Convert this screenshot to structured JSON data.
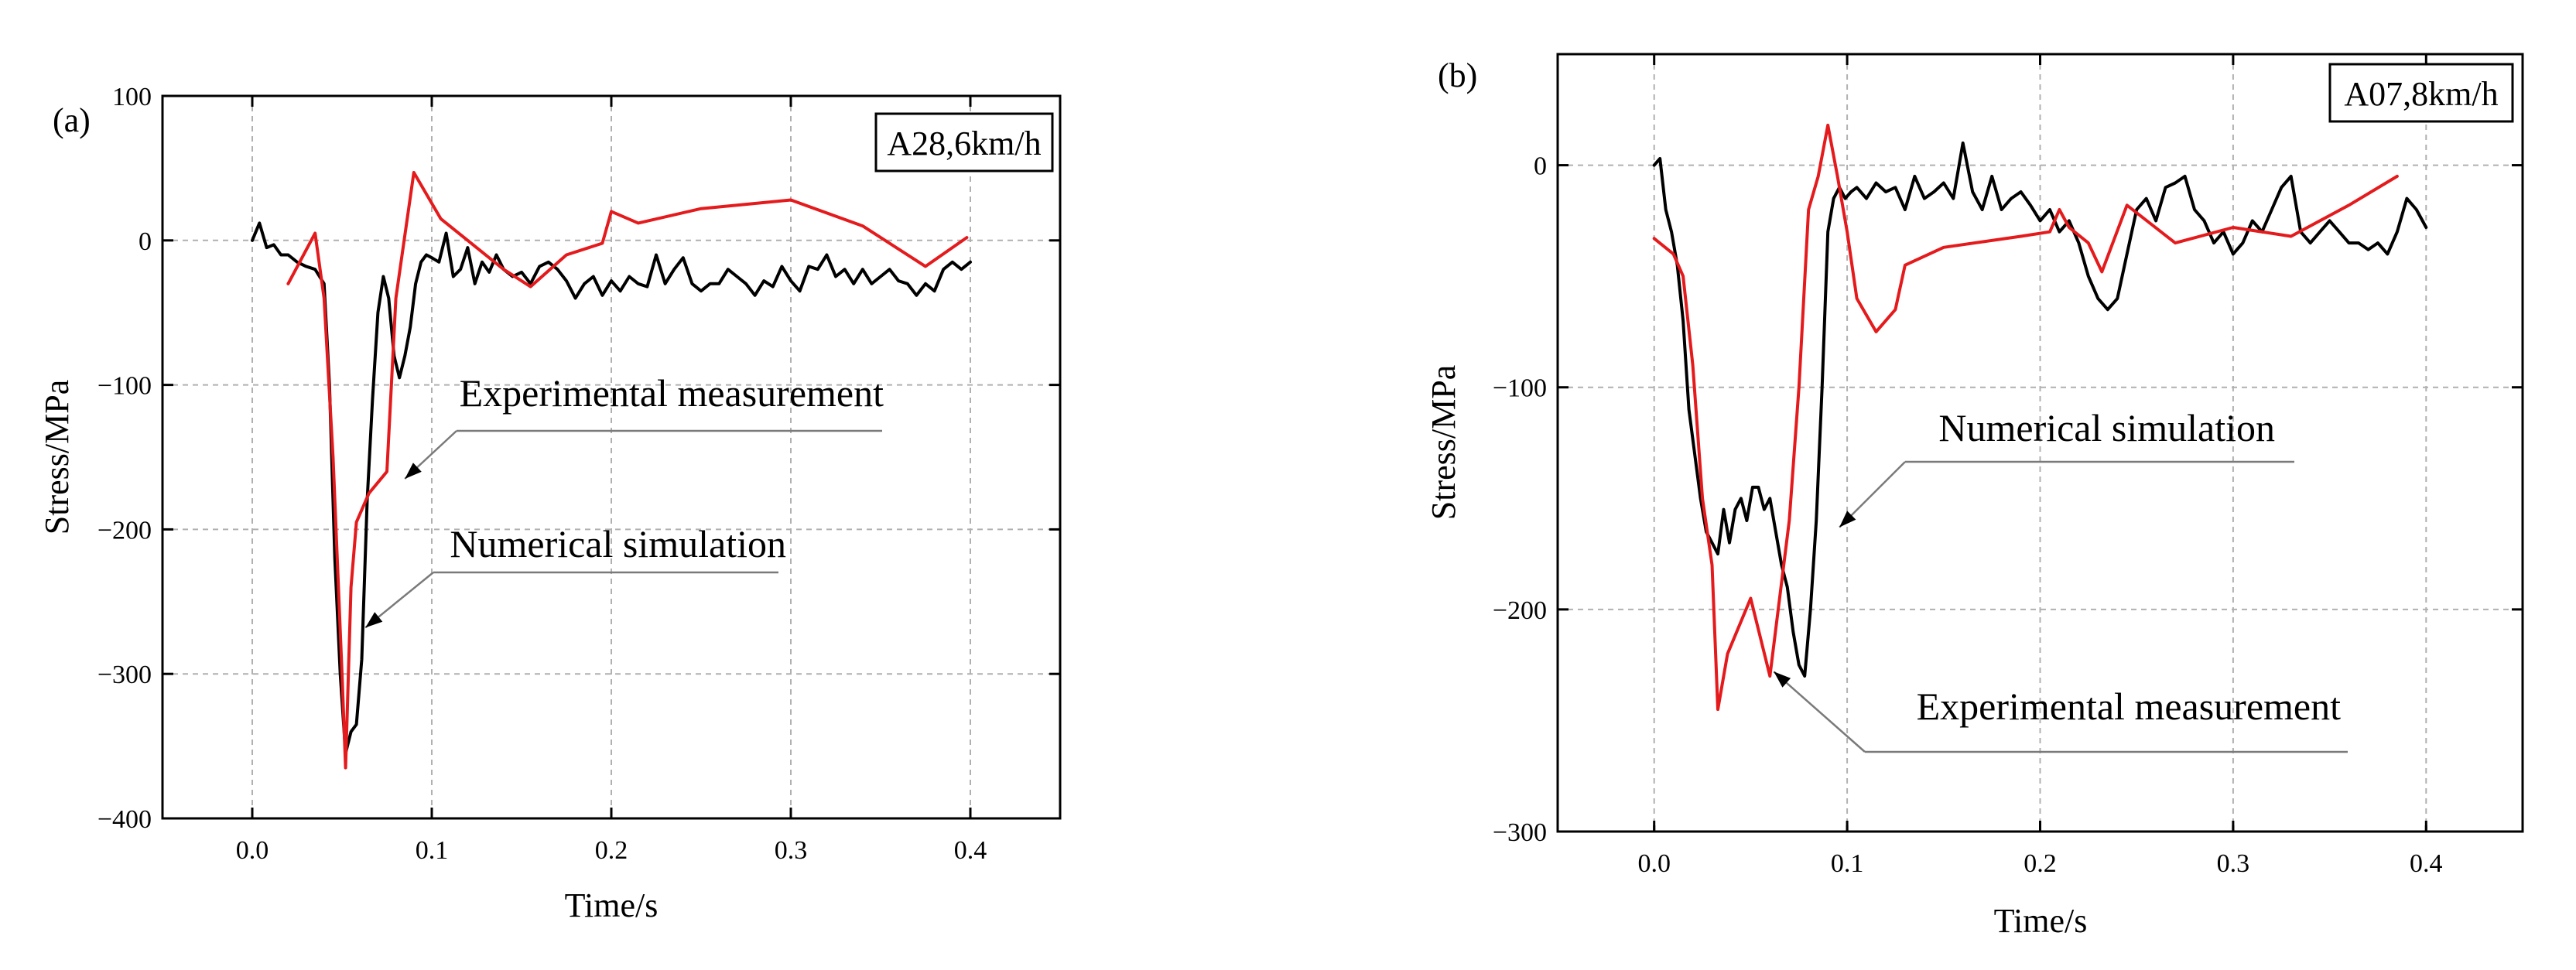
{
  "chart_data": [
    {
      "type": "line",
      "panel": "(a)",
      "title": "A28,6km/h",
      "xlabel": "Time/s",
      "ylabel": "Stress/MPa",
      "xlim": [
        -0.05,
        0.45
      ],
      "ylim": [
        -400,
        100
      ],
      "x_ticks": [
        0.0,
        0.1,
        0.2,
        0.3,
        0.4
      ],
      "x_tick_labels": [
        "0.0",
        "0.1",
        "0.2",
        "0.3",
        "0.4"
      ],
      "y_ticks": [
        100,
        0,
        -100,
        -200,
        -300,
        -400
      ],
      "y_tick_labels": [
        "100",
        "0",
        "−100",
        "−200",
        "−300",
        "−400"
      ],
      "grid": true,
      "series": [
        {
          "name": "Numerical simulation",
          "color": "#000000",
          "x": [
            0.0,
            0.004,
            0.008,
            0.012,
            0.016,
            0.02,
            0.025,
            0.03,
            0.035,
            0.04,
            0.043,
            0.046,
            0.049,
            0.052,
            0.055,
            0.058,
            0.061,
            0.064,
            0.067,
            0.07,
            0.073,
            0.076,
            0.079,
            0.082,
            0.085,
            0.088,
            0.091,
            0.094,
            0.097,
            0.1,
            0.104,
            0.108,
            0.112,
            0.116,
            0.12,
            0.124,
            0.128,
            0.132,
            0.136,
            0.14,
            0.145,
            0.15,
            0.155,
            0.16,
            0.165,
            0.17,
            0.175,
            0.18,
            0.185,
            0.19,
            0.195,
            0.2,
            0.205,
            0.21,
            0.215,
            0.22,
            0.225,
            0.23,
            0.235,
            0.24,
            0.245,
            0.25,
            0.255,
            0.26,
            0.265,
            0.27,
            0.275,
            0.28,
            0.285,
            0.29,
            0.295,
            0.3,
            0.305,
            0.31,
            0.315,
            0.32,
            0.325,
            0.33,
            0.335,
            0.34,
            0.345,
            0.35,
            0.355,
            0.36,
            0.365,
            0.37,
            0.375,
            0.38,
            0.385,
            0.39,
            0.395,
            0.4
          ],
          "y": [
            0,
            12,
            -5,
            -3,
            -10,
            -10,
            -15,
            -18,
            -20,
            -30,
            -100,
            -220,
            -300,
            -355,
            -340,
            -335,
            -290,
            -180,
            -110,
            -50,
            -25,
            -40,
            -80,
            -95,
            -80,
            -60,
            -30,
            -15,
            -10,
            -12,
            -15,
            5,
            -25,
            -20,
            -5,
            -30,
            -15,
            -22,
            -10,
            -20,
            -25,
            -22,
            -30,
            -18,
            -15,
            -20,
            -28,
            -40,
            -30,
            -25,
            -38,
            -28,
            -35,
            -25,
            -30,
            -32,
            -10,
            -30,
            -20,
            -12,
            -30,
            -35,
            -30,
            -30,
            -20,
            -25,
            -30,
            -38,
            -28,
            -32,
            -18,
            -28,
            -35,
            -18,
            -20,
            -10,
            -25,
            -20,
            -30,
            -20,
            -30,
            -25,
            -20,
            -28,
            -30,
            -38,
            -30,
            -35,
            -20,
            -15,
            -20,
            -15
          ]
        },
        {
          "name": "Experimental measurement",
          "color": "#e41a1c",
          "x": [
            0.02,
            0.035,
            0.04,
            0.045,
            0.05,
            0.052,
            0.055,
            0.058,
            0.065,
            0.075,
            0.08,
            0.09,
            0.105,
            0.12,
            0.14,
            0.155,
            0.175,
            0.195,
            0.2,
            0.215,
            0.25,
            0.3,
            0.34,
            0.375,
            0.398
          ],
          "y": [
            -30,
            5,
            -40,
            -150,
            -300,
            -365,
            -240,
            -195,
            -175,
            -160,
            -40,
            47,
            15,
            0,
            -20,
            -32,
            -10,
            -2,
            20,
            12,
            22,
            28,
            10,
            -18,
            2
          ]
        }
      ],
      "annotations": [
        {
          "text": "Experimental measurement",
          "target_x": 0.085,
          "target_y": -165
        },
        {
          "text": "Numerical simulation",
          "target_x": 0.063,
          "target_y": -268
        }
      ]
    },
    {
      "type": "line",
      "panel": "(b)",
      "title": "A07,8km/h",
      "xlabel": "Time/s",
      "ylabel": "Stress/MPa",
      "xlim": [
        -0.05,
        0.45
      ],
      "ylim": [
        -300,
        50
      ],
      "x_ticks": [
        0.0,
        0.1,
        0.2,
        0.3,
        0.4
      ],
      "x_tick_labels": [
        "0.0",
        "0.1",
        "0.2",
        "0.3",
        "0.4"
      ],
      "y_ticks": [
        0,
        -100,
        -200,
        -300
      ],
      "y_tick_labels": [
        "0",
        "−100",
        "−200",
        "−300"
      ],
      "grid": true,
      "series": [
        {
          "name": "Numerical simulation",
          "color": "#000000",
          "x": [
            0.0,
            0.003,
            0.006,
            0.009,
            0.012,
            0.015,
            0.018,
            0.021,
            0.024,
            0.027,
            0.03,
            0.033,
            0.036,
            0.039,
            0.042,
            0.045,
            0.048,
            0.051,
            0.054,
            0.057,
            0.06,
            0.063,
            0.066,
            0.069,
            0.072,
            0.075,
            0.078,
            0.081,
            0.084,
            0.087,
            0.09,
            0.093,
            0.096,
            0.099,
            0.102,
            0.105,
            0.11,
            0.115,
            0.12,
            0.125,
            0.13,
            0.135,
            0.14,
            0.145,
            0.15,
            0.155,
            0.16,
            0.165,
            0.17,
            0.175,
            0.18,
            0.185,
            0.19,
            0.195,
            0.2,
            0.205,
            0.21,
            0.215,
            0.22,
            0.225,
            0.23,
            0.235,
            0.24,
            0.245,
            0.25,
            0.255,
            0.26,
            0.265,
            0.27,
            0.275,
            0.28,
            0.285,
            0.29,
            0.295,
            0.3,
            0.305,
            0.31,
            0.315,
            0.32,
            0.325,
            0.33,
            0.335,
            0.34,
            0.345,
            0.35,
            0.355,
            0.36,
            0.365,
            0.37,
            0.375,
            0.38,
            0.385,
            0.39,
            0.395,
            0.4
          ],
          "y": [
            0,
            3,
            -20,
            -30,
            -45,
            -70,
            -110,
            -130,
            -150,
            -165,
            -170,
            -175,
            -155,
            -170,
            -155,
            -150,
            -160,
            -145,
            -145,
            -155,
            -150,
            -165,
            -180,
            -190,
            -210,
            -225,
            -230,
            -200,
            -160,
            -100,
            -30,
            -15,
            -10,
            -15,
            -12,
            -10,
            -15,
            -8,
            -12,
            -10,
            -20,
            -5,
            -15,
            -12,
            -8,
            -15,
            10,
            -12,
            -20,
            -5,
            -20,
            -15,
            -12,
            -18,
            -25,
            -20,
            -30,
            -25,
            -35,
            -50,
            -60,
            -65,
            -60,
            -40,
            -20,
            -15,
            -25,
            -10,
            -8,
            -5,
            -20,
            -25,
            -35,
            -30,
            -40,
            -35,
            -25,
            -30,
            -20,
            -10,
            -5,
            -30,
            -35,
            -30,
            -25,
            -30,
            -35,
            -35,
            -38,
            -35,
            -40,
            -30,
            -15,
            -20,
            -28
          ]
        },
        {
          "name": "Experimental measurement",
          "color": "#e41a1c",
          "x": [
            0.0,
            0.01,
            0.015,
            0.02,
            0.025,
            0.03,
            0.033,
            0.038,
            0.05,
            0.06,
            0.07,
            0.075,
            0.08,
            0.085,
            0.09,
            0.095,
            0.1,
            0.105,
            0.115,
            0.125,
            0.13,
            0.15,
            0.19,
            0.205,
            0.21,
            0.215,
            0.225,
            0.232,
            0.245,
            0.27,
            0.3,
            0.33,
            0.36,
            0.385
          ],
          "y": [
            -33,
            -40,
            -50,
            -90,
            -150,
            -180,
            -245,
            -220,
            -195,
            -230,
            -160,
            -100,
            -20,
            -5,
            18,
            -5,
            -30,
            -60,
            -75,
            -65,
            -45,
            -37,
            -32,
            -30,
            -20,
            -28,
            -35,
            -48,
            -18,
            -35,
            -28,
            -32,
            -18,
            -5
          ]
        }
      ],
      "annotations": [
        {
          "text": "Numerical simulation",
          "target_x": 0.096,
          "target_y": -163
        },
        {
          "text": "Experimental measurement",
          "target_x": 0.062,
          "target_y": -228
        }
      ]
    }
  ]
}
